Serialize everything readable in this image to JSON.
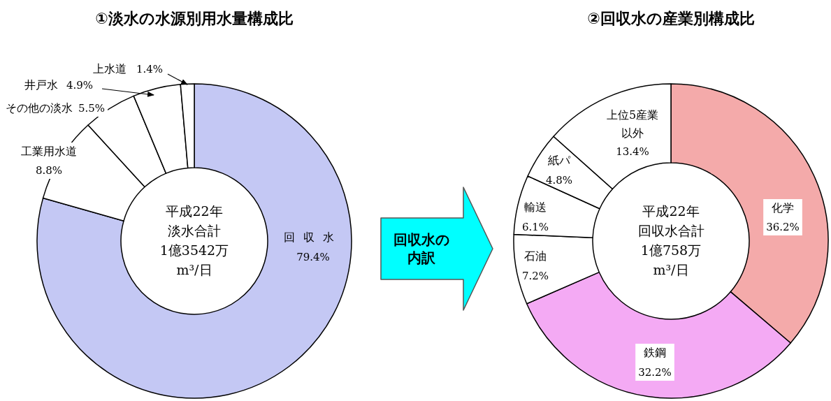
{
  "chart_data": [
    {
      "type": "donut",
      "title": "①淡水の水源別用水量構成比",
      "categories": [
        "回収水",
        "工業用水道",
        "その他の淡水",
        "井戸水",
        "上水道"
      ],
      "values": [
        79.4,
        8.8,
        5.5,
        4.9,
        1.4
      ],
      "colors": [
        "#c4c8f4",
        "#ffffff",
        "#ffffff",
        "#ffffff",
        "#ffffff"
      ],
      "value_labels": [
        "79.4%",
        "8.8%",
        "5.5%",
        "4.9%",
        "1.4%"
      ],
      "annotations": [
        "平成22年",
        "淡水合計",
        "1億3542万",
        "m³/日"
      ]
    },
    {
      "type": "other",
      "annotations": [
        "回収水の内訳"
      ]
    },
    {
      "type": "donut",
      "title": "②回収水の産業別構成比",
      "categories": [
        "化学",
        "鉄鋼",
        "石油",
        "輸送",
        "紙パ",
        "上位5産業以外"
      ],
      "values": [
        36.2,
        32.2,
        7.2,
        6.1,
        4.8,
        13.4
      ],
      "colors": [
        "#f4aaaa",
        "#f4aaf4",
        "#ffffff",
        "#ffffff",
        "#ffffff",
        "#ffffff"
      ],
      "value_labels": [
        "36.2%",
        "32.2%",
        "7.2%",
        "6.1%",
        "4.8%",
        "13.4%"
      ],
      "annotations": [
        "平成22年",
        "回収水合計",
        "1億758万",
        "m³/日"
      ]
    }
  ]
}
